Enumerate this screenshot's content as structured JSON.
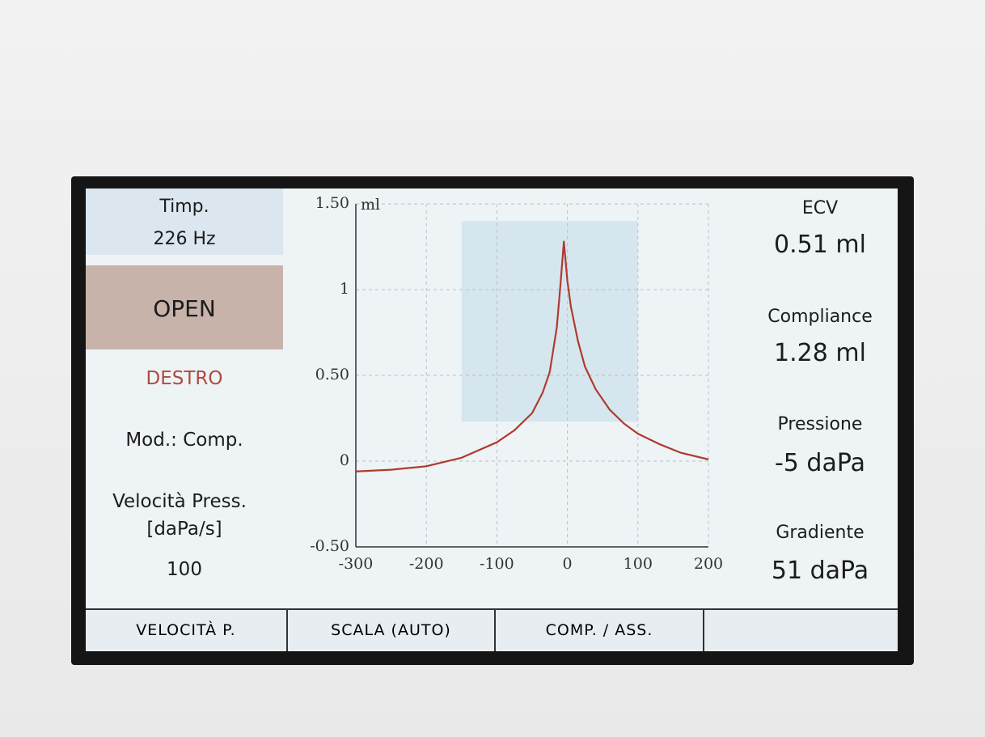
{
  "left_panel": {
    "mode_title": "Timp.",
    "frequency": "226 Hz",
    "status": "OPEN",
    "ear": "DESTRO",
    "mode": "Mod.: Comp.",
    "speed_label": "Velocità Press.",
    "speed_unit": "[daPa/s]",
    "speed_value": "100"
  },
  "right_panel": [
    {
      "label": "ECV",
      "value": "0.51  ml"
    },
    {
      "label": "Compliance",
      "value": "1.28  ml"
    },
    {
      "label": "Pressione",
      "value": "-5  daPa"
    },
    {
      "label": "Gradiente",
      "value": "51  daPa"
    }
  ],
  "buttons": [
    "VELOCITÀ P.",
    "SCALA (AUTO)",
    "COMP. / ASS.",
    ""
  ],
  "chart_data": {
    "type": "line",
    "ylabel": "ml",
    "x": [
      -300,
      -250,
      -200,
      -150,
      -100,
      -75,
      -50,
      -35,
      -25,
      -15,
      -10,
      -5,
      0,
      5,
      15,
      25,
      40,
      60,
      80,
      100,
      130,
      160,
      200
    ],
    "values": [
      -0.06,
      -0.05,
      -0.03,
      0.02,
      0.11,
      0.18,
      0.28,
      0.4,
      0.52,
      0.78,
      1.02,
      1.28,
      1.05,
      0.9,
      0.7,
      0.55,
      0.42,
      0.3,
      0.22,
      0.16,
      0.1,
      0.05,
      0.01
    ],
    "color": "#b03a2e",
    "region": {
      "xlim": [
        -150,
        100
      ],
      "ylim": [
        0.23,
        1.4
      ],
      "color": "#d6e6ee"
    },
    "xlim": [
      -300,
      200
    ],
    "ylim": [
      -0.5,
      1.5
    ],
    "xticks": [
      -300,
      -200,
      -100,
      0,
      100,
      200
    ],
    "yticks": [
      {
        "value": -0.5,
        "label": "-0.50"
      },
      0,
      {
        "value": 0.5,
        "label": "0.50"
      },
      1,
      {
        "value": 1.5,
        "label": "1.50"
      }
    ],
    "grid": true
  }
}
